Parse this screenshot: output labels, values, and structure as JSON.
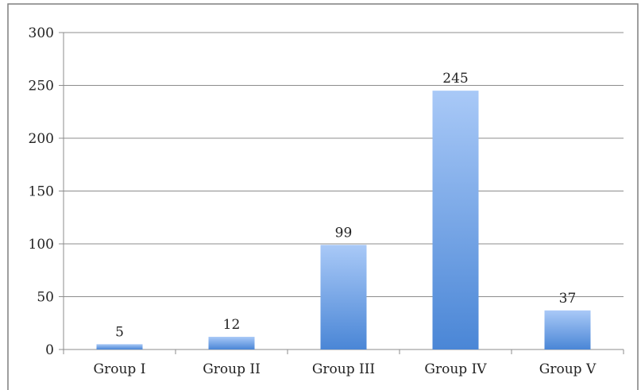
{
  "chart_data": {
    "type": "bar",
    "title": "",
    "xlabel": "",
    "ylabel": "",
    "categories": [
      "Group I",
      "Group II",
      "Group III",
      "Group IV",
      "Group V"
    ],
    "values": [
      5,
      12,
      99,
      245,
      37
    ],
    "data_labels": [
      "5",
      "12",
      "99",
      "245",
      "37"
    ],
    "ylim": [
      0,
      300
    ],
    "yticks": [
      0,
      50,
      100,
      150,
      200,
      250,
      300
    ],
    "ytick_labels": [
      "0",
      "50",
      "100",
      "150",
      "200",
      "250",
      "300"
    ],
    "grid": true,
    "legend": "none",
    "colors": {
      "bar_top": "#a9c9f7",
      "bar_bottom": "#4a86d6",
      "grid": "#8c8c8c",
      "frame": "#7f7f7f"
    }
  }
}
